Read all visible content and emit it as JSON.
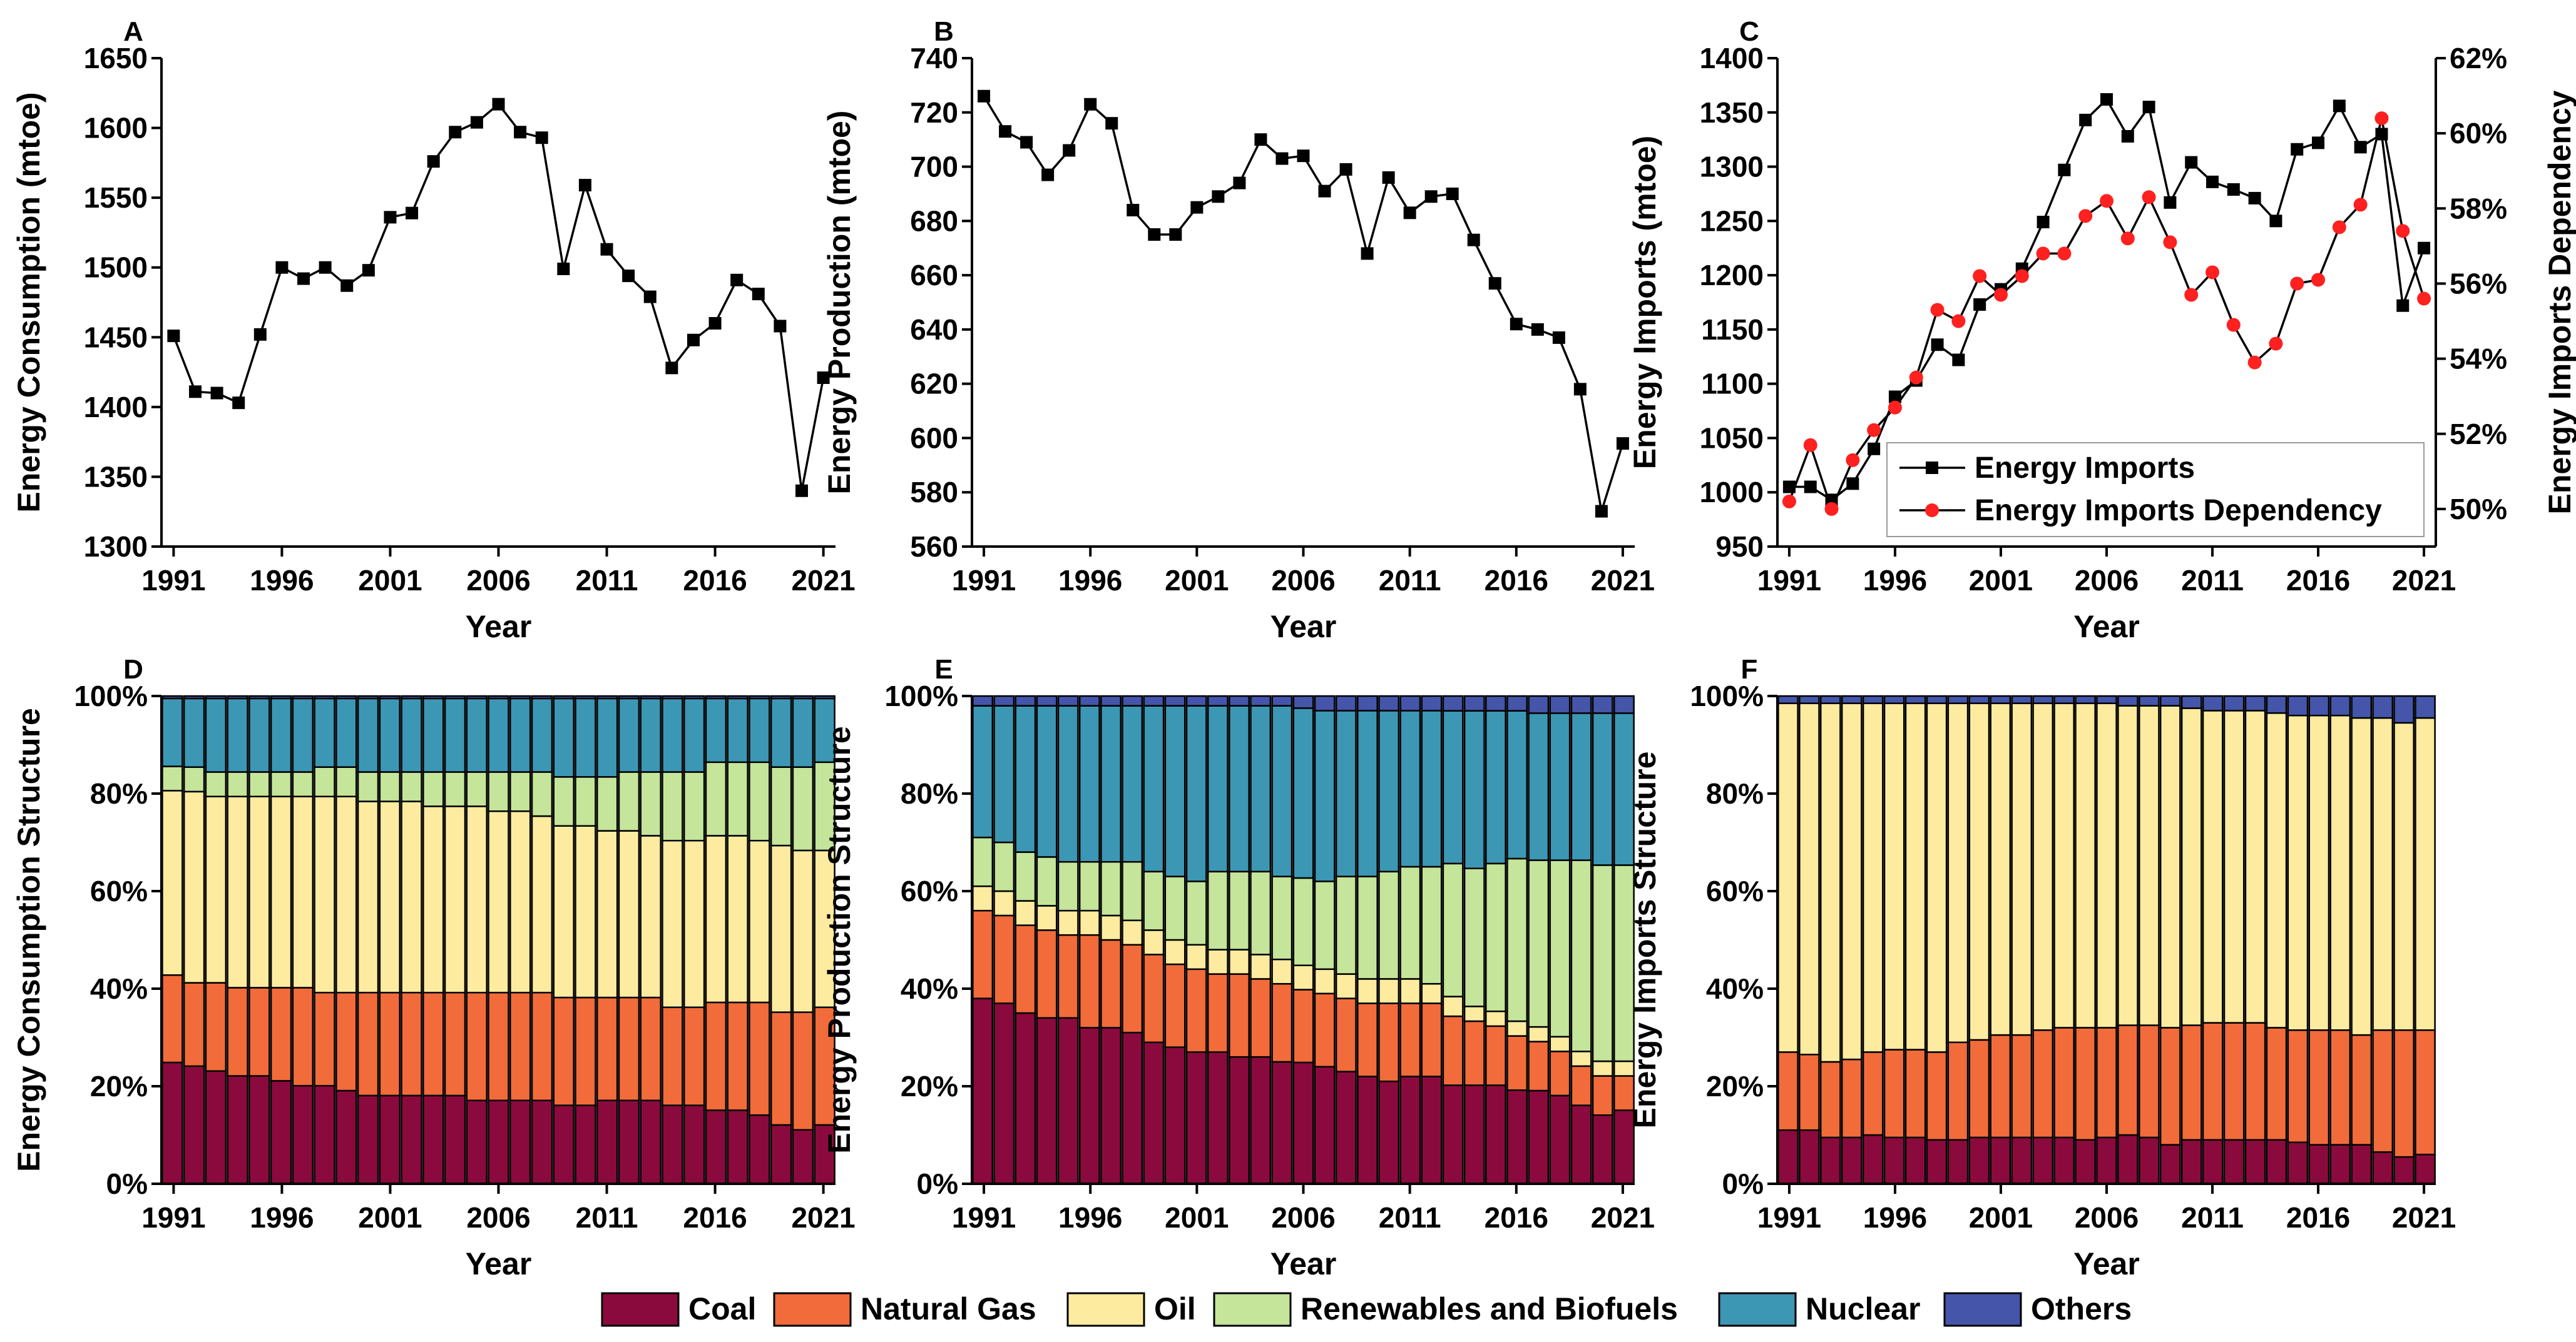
{
  "colors": {
    "coal": "#8B0A3D",
    "natural_gas": "#F26B3A",
    "oil": "#FDEBA0",
    "renewables": "#C4E59A",
    "nuclear": "#3C97B4",
    "others": "#4455AA",
    "imports_dependency": "#FF2020"
  },
  "chart_data": [
    {
      "id": "A",
      "type": "line",
      "panel_label": "A",
      "xlabel": "Year",
      "ylabel": "Energy Consumption (mtoe)",
      "ylim": [
        1300,
        1650
      ],
      "yticks": [
        "1300",
        "1350",
        "1400",
        "1450",
        "1500",
        "1550",
        "1600",
        "1650"
      ],
      "xticks": [
        "1991",
        "1996",
        "2001",
        "2006",
        "2011",
        "2016",
        "2021"
      ],
      "x": [
        1991,
        1992,
        1993,
        1994,
        1995,
        1996,
        1997,
        1998,
        1999,
        2000,
        2001,
        2002,
        2003,
        2004,
        2005,
        2006,
        2007,
        2008,
        2009,
        2010,
        2011,
        2012,
        2013,
        2014,
        2015,
        2016,
        2017,
        2018,
        2019,
        2020,
        2021
      ],
      "series": [
        {
          "name": "Energy Consumption",
          "values": [
            1451,
            1411,
            1410,
            1403,
            1452,
            1500,
            1492,
            1500,
            1487,
            1498,
            1536,
            1539,
            1576,
            1597,
            1604,
            1617,
            1597,
            1593,
            1499,
            1559,
            1513,
            1494,
            1479,
            1428,
            1448,
            1460,
            1491,
            1481,
            1458,
            1340,
            1421
          ]
        }
      ]
    },
    {
      "id": "B",
      "type": "line",
      "panel_label": "B",
      "xlabel": "Year",
      "ylabel": "Energy Production (mtoe)",
      "ylim": [
        560,
        740
      ],
      "yticks": [
        "560",
        "580",
        "600",
        "620",
        "640",
        "660",
        "680",
        "700",
        "720",
        "740"
      ],
      "xticks": [
        "1991",
        "1996",
        "2001",
        "2006",
        "2011",
        "2016",
        "2021"
      ],
      "x": [
        1991,
        1992,
        1993,
        1994,
        1995,
        1996,
        1997,
        1998,
        1999,
        2000,
        2001,
        2002,
        2003,
        2004,
        2005,
        2006,
        2007,
        2008,
        2009,
        2010,
        2011,
        2012,
        2013,
        2014,
        2015,
        2016,
        2017,
        2018,
        2019,
        2020,
        2021
      ],
      "series": [
        {
          "name": "Energy Production",
          "values": [
            726,
            713,
            709,
            697,
            706,
            723,
            716,
            684,
            675,
            675,
            685,
            689,
            694,
            710,
            703,
            704,
            691,
            699,
            668,
            696,
            683,
            689,
            690,
            673,
            657,
            642,
            640,
            637,
            618,
            573,
            598
          ]
        }
      ]
    },
    {
      "id": "C",
      "type": "line",
      "panel_label": "C",
      "xlabel": "Year",
      "ylabel": "Energy Imports (mtoe)",
      "ylabel_right": "Energy Imports Dependency",
      "ylim": [
        950,
        1400
      ],
      "ylim_right": [
        49,
        62
      ],
      "yticks": [
        "950",
        "1000",
        "1050",
        "1100",
        "1150",
        "1200",
        "1250",
        "1300",
        "1350",
        "1400"
      ],
      "yticks_right": [
        "50%",
        "52%",
        "54%",
        "56%",
        "58%",
        "60%",
        "62%"
      ],
      "xticks": [
        "1991",
        "1996",
        "2001",
        "2006",
        "2011",
        "2016",
        "2021"
      ],
      "legend": "bottom-right",
      "x": [
        1991,
        1992,
        1993,
        1994,
        1995,
        1996,
        1997,
        1998,
        1999,
        2000,
        2001,
        2002,
        2003,
        2004,
        2005,
        2006,
        2007,
        2008,
        2009,
        2010,
        2011,
        2012,
        2013,
        2014,
        2015,
        2016,
        2017,
        2018,
        2019,
        2020,
        2021
      ],
      "series": [
        {
          "name": "Energy Imports",
          "axis": "left",
          "values": [
            1005,
            1005,
            993,
            1008,
            1040,
            1088,
            1103,
            1136,
            1122,
            1173,
            1187,
            1206,
            1249,
            1297,
            1343,
            1362,
            1328,
            1355,
            1267,
            1304,
            1286,
            1279,
            1271,
            1250,
            1316,
            1322,
            1356,
            1318,
            1330,
            1172,
            1225
          ]
        },
        {
          "name": "Energy Imports Dependency",
          "axis": "right",
          "values": [
            50.2,
            51.7,
            50.0,
            51.3,
            52.1,
            52.7,
            53.5,
            55.3,
            55.0,
            56.2,
            55.7,
            56.2,
            56.8,
            56.8,
            57.8,
            58.2,
            57.2,
            58.3,
            57.1,
            55.7,
            56.3,
            54.9,
            53.9,
            54.4,
            56.0,
            56.1,
            57.5,
            58.1,
            60.4,
            57.4,
            55.6
          ]
        }
      ]
    },
    {
      "id": "D",
      "type": "bar",
      "stacked": true,
      "panel_label": "D",
      "xlabel": "Year",
      "ylabel": "Energy Consumption Structure",
      "yticks": [
        "0%",
        "20%",
        "40%",
        "60%",
        "80%",
        "100%"
      ],
      "xticks": [
        "1991",
        "1996",
        "2001",
        "2006",
        "2011",
        "2016",
        "2021"
      ],
      "categories": [
        1991,
        1992,
        1993,
        1994,
        1995,
        1996,
        1997,
        1998,
        1999,
        2000,
        2001,
        2002,
        2003,
        2004,
        2005,
        2006,
        2007,
        2008,
        2009,
        2010,
        2011,
        2012,
        2013,
        2014,
        2015,
        2016,
        2017,
        2018,
        2019,
        2020,
        2021
      ],
      "series": [
        {
          "name": "Coal",
          "values": [
            25,
            24,
            23,
            22,
            22,
            21,
            20,
            20,
            19,
            18,
            18,
            18,
            18,
            18,
            17,
            17,
            17,
            17,
            16,
            16,
            17,
            17,
            17,
            16,
            16,
            15,
            15,
            14,
            12,
            11,
            12
          ]
        },
        {
          "name": "Natural Gas",
          "values": [
            18,
            17,
            18,
            18,
            18,
            19,
            20,
            19,
            20,
            21,
            21,
            21,
            21,
            21,
            22,
            22,
            22,
            22,
            22,
            22,
            21,
            21,
            21,
            20,
            20,
            22,
            22,
            23,
            23,
            24,
            24
          ]
        },
        {
          "name": "Oil",
          "values": [
            38,
            39,
            38,
            39,
            39,
            39,
            39,
            40,
            40,
            39,
            39,
            39,
            38,
            38,
            38,
            37,
            37,
            36,
            35,
            35,
            34,
            34,
            33,
            34,
            34,
            34,
            34,
            33,
            34,
            33,
            32
          ]
        },
        {
          "name": "Renewables and Biofuels",
          "values": [
            5,
            5,
            5,
            5,
            5,
            5,
            5,
            6,
            6,
            6,
            6,
            6,
            7,
            7,
            7,
            8,
            8,
            9,
            10,
            10,
            11,
            12,
            13,
            14,
            14,
            15,
            15,
            16,
            16,
            17,
            18
          ]
        },
        {
          "name": "Nuclear",
          "values": [
            14,
            14,
            15,
            15,
            15,
            15,
            15,
            14,
            14,
            15,
            15,
            15,
            15,
            15,
            15,
            15,
            15,
            15,
            16,
            16,
            16,
            15,
            15,
            15,
            15,
            13,
            13,
            13,
            14,
            14,
            13
          ]
        },
        {
          "name": "Others",
          "values": [
            0.5,
            0.5,
            0.5,
            0.5,
            0.5,
            0.5,
            0.5,
            0.5,
            0.5,
            0.5,
            0.5,
            0.5,
            0.5,
            0.5,
            0.5,
            0.5,
            0.5,
            0.5,
            0.5,
            0.5,
            0.5,
            0.5,
            0.5,
            0.5,
            0.5,
            0.5,
            0.5,
            0.5,
            0.5,
            0.5,
            0.5
          ]
        }
      ]
    },
    {
      "id": "E",
      "type": "bar",
      "stacked": true,
      "panel_label": "E",
      "xlabel": "Year",
      "ylabel": "Energy Production Structure",
      "yticks": [
        "0%",
        "20%",
        "40%",
        "60%",
        "80%",
        "100%"
      ],
      "xticks": [
        "1991",
        "1996",
        "2001",
        "2006",
        "2011",
        "2016",
        "2021"
      ],
      "categories": [
        1991,
        1992,
        1993,
        1994,
        1995,
        1996,
        1997,
        1998,
        1999,
        2000,
        2001,
        2002,
        2003,
        2004,
        2005,
        2006,
        2007,
        2008,
        2009,
        2010,
        2011,
        2012,
        2013,
        2014,
        2015,
        2016,
        2017,
        2018,
        2019,
        2020,
        2021
      ],
      "series": [
        {
          "name": "Coal",
          "values": [
            38,
            37,
            35,
            34,
            34,
            32,
            32,
            31,
            29,
            28,
            27,
            27,
            26,
            26,
            25,
            25,
            24,
            23,
            22,
            21,
            22,
            22,
            20,
            20,
            20,
            19,
            19,
            18,
            16,
            14,
            15
          ]
        },
        {
          "name": "Natural Gas",
          "values": [
            18,
            18,
            18,
            18,
            17,
            19,
            18,
            18,
            18,
            17,
            17,
            16,
            17,
            16,
            16,
            15,
            15,
            15,
            15,
            16,
            15,
            15,
            14,
            13,
            12,
            11,
            10,
            9,
            8,
            8,
            7
          ]
        },
        {
          "name": "Oil",
          "values": [
            5,
            5,
            5,
            5,
            5,
            5,
            5,
            5,
            5,
            5,
            5,
            5,
            5,
            5,
            5,
            5,
            5,
            5,
            5,
            5,
            5,
            4,
            4,
            3,
            3,
            3,
            3,
            3,
            3,
            3,
            3
          ]
        },
        {
          "name": "Renewables and Biofuels",
          "values": [
            10,
            10,
            10,
            10,
            10,
            10,
            11,
            12,
            12,
            13,
            13,
            16,
            16,
            17,
            17,
            18,
            18,
            20,
            21,
            22,
            23,
            24,
            27,
            28,
            30,
            33,
            34,
            36,
            39,
            40,
            40
          ]
        },
        {
          "name": "Nuclear",
          "values": [
            27,
            28,
            30,
            31,
            32,
            32,
            32,
            32,
            34,
            35,
            36,
            34,
            34,
            34,
            35,
            35,
            35,
            34,
            34,
            33,
            32,
            32,
            31,
            32,
            31,
            30,
            30,
            30,
            30,
            31,
            31
          ]
        },
        {
          "name": "Others",
          "values": [
            2,
            2,
            2,
            2,
            2,
            2,
            2,
            2,
            2,
            2,
            2,
            2,
            2,
            2,
            2,
            2.5,
            3,
            3,
            3,
            3,
            3,
            3,
            3,
            3,
            3,
            3,
            3.5,
            3.5,
            3.5,
            3.5,
            3.5
          ]
        }
      ]
    },
    {
      "id": "F",
      "type": "bar",
      "stacked": true,
      "panel_label": "F",
      "xlabel": "Year",
      "ylabel": "Energy Imports Structure",
      "yticks": [
        "0%",
        "20%",
        "40%",
        "60%",
        "80%",
        "100%"
      ],
      "xticks": [
        "1991",
        "1996",
        "2001",
        "2006",
        "2011",
        "2016",
        "2021"
      ],
      "categories": [
        1991,
        1992,
        1993,
        1994,
        1995,
        1996,
        1997,
        1998,
        1999,
        2000,
        2001,
        2002,
        2003,
        2004,
        2005,
        2006,
        2007,
        2008,
        2009,
        2010,
        2011,
        2012,
        2013,
        2014,
        2015,
        2016,
        2017,
        2018,
        2019,
        2020,
        2021
      ],
      "series": [
        {
          "name": "Coal",
          "values": [
            11,
            11,
            9.5,
            9.5,
            10,
            9.5,
            9.5,
            9,
            9,
            9.5,
            9.5,
            9.5,
            9.5,
            9.5,
            9,
            9.5,
            10,
            9.5,
            8,
            9,
            9,
            9,
            9,
            9,
            8.5,
            8,
            8,
            8,
            6.5,
            5.5,
            6
          ]
        },
        {
          "name": "Natural Gas",
          "values": [
            16,
            15.5,
            15.5,
            16,
            17,
            18,
            18,
            18,
            20,
            20,
            21,
            21,
            22,
            22.5,
            23,
            22.5,
            22.5,
            23,
            24,
            23.5,
            24,
            24,
            24,
            23,
            23,
            23.5,
            23.5,
            22.5,
            25,
            26,
            25.5
          ]
        },
        {
          "name": "Oil",
          "values": [
            71.5,
            72,
            73.5,
            73,
            71.5,
            71,
            71,
            71.5,
            69.5,
            69,
            68,
            68,
            67,
            66.5,
            66.5,
            66.5,
            65.5,
            65.5,
            66,
            65,
            64,
            64,
            64,
            64.5,
            64.5,
            64.5,
            64.5,
            65,
            64,
            63,
            64
          ]
        },
        {
          "name": "Renewables and Biofuels",
          "values": [
            0,
            0,
            0,
            0,
            0,
            0,
            0,
            0,
            0,
            0,
            0,
            0,
            0,
            0,
            0,
            0,
            0,
            0,
            0,
            0,
            0,
            0,
            0,
            0,
            0,
            0,
            0,
            0,
            0,
            0,
            0
          ]
        },
        {
          "name": "Nuclear",
          "values": [
            0,
            0,
            0,
            0,
            0,
            0,
            0,
            0,
            0,
            0,
            0,
            0,
            0,
            0,
            0,
            0,
            0,
            0,
            0,
            0,
            0,
            0,
            0,
            0,
            0,
            0,
            0,
            0,
            0,
            0,
            0
          ]
        },
        {
          "name": "Others",
          "values": [
            1.5,
            1.5,
            1.5,
            1.5,
            1.5,
            1.5,
            1.5,
            1.5,
            1.5,
            1.5,
            1.5,
            1.5,
            1.5,
            1.5,
            1.5,
            1.5,
            2,
            2,
            2,
            2.5,
            3,
            3,
            3,
            3.5,
            4,
            4,
            4,
            4.5,
            4.5,
            5.5,
            4.5
          ]
        }
      ]
    }
  ],
  "legend": {
    "items": [
      {
        "label": "Coal",
        "color_key": "coal"
      },
      {
        "label": "Natural Gas",
        "color_key": "natural_gas"
      },
      {
        "label": "Oil",
        "color_key": "oil"
      },
      {
        "label": "Renewables and Biofuels",
        "color_key": "renewables"
      },
      {
        "label": "Nuclear",
        "color_key": "nuclear"
      },
      {
        "label": "Others",
        "color_key": "others"
      }
    ]
  }
}
